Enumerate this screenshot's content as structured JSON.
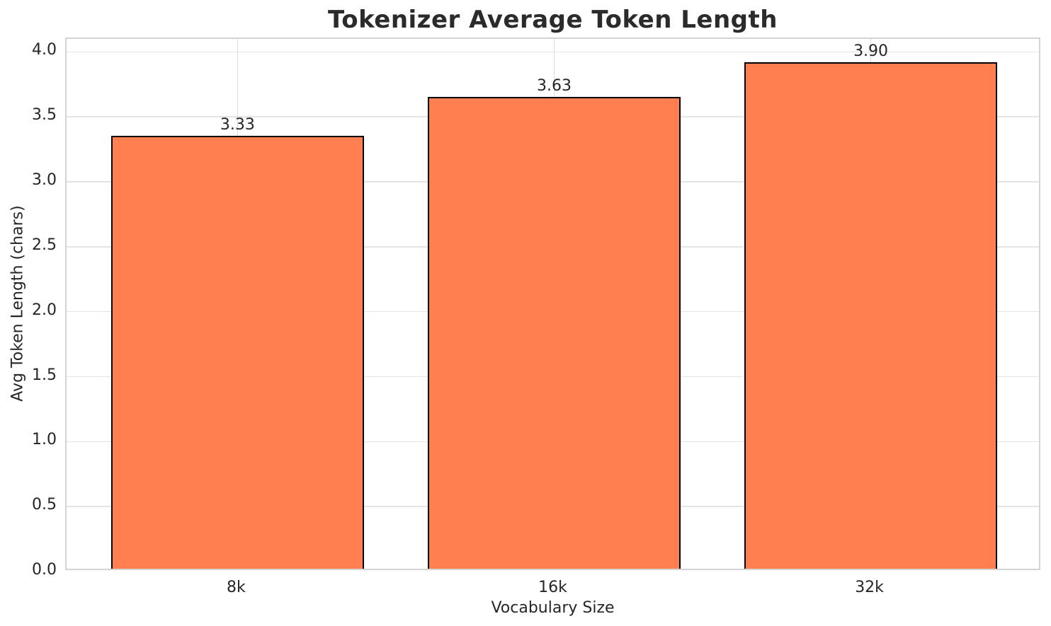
{
  "chart_data": {
    "type": "bar",
    "title": "Tokenizer Average Token Length",
    "xlabel": "Vocabulary Size",
    "ylabel": "Avg Token Length (chars)",
    "categories": [
      "8k",
      "16k",
      "32k"
    ],
    "values": [
      3.33,
      3.63,
      3.9
    ],
    "value_labels": [
      "3.33",
      "3.63",
      "3.90"
    ],
    "yticks": [
      0.0,
      0.5,
      1.0,
      1.5,
      2.0,
      2.5,
      3.0,
      3.5,
      4.0
    ],
    "ytick_labels": [
      "0.0",
      "0.5",
      "1.0",
      "1.5",
      "2.0",
      "2.5",
      "3.0",
      "3.5",
      "4.0"
    ],
    "ylim": [
      0,
      4.1
    ],
    "xlim": [
      -0.54,
      2.54
    ],
    "bar_width_units": 0.8,
    "grid": true,
    "legend_position": "none",
    "colors": {
      "bar_fill": "#FF7F50",
      "bar_edge": "#000000",
      "grid_horizontal": "#e4e4e4",
      "grid_vertical": "#dcdcdc",
      "spine": "#d4d4d4",
      "text": "#262626",
      "title": "#2b2b2b",
      "background": "#ffffff"
    }
  }
}
